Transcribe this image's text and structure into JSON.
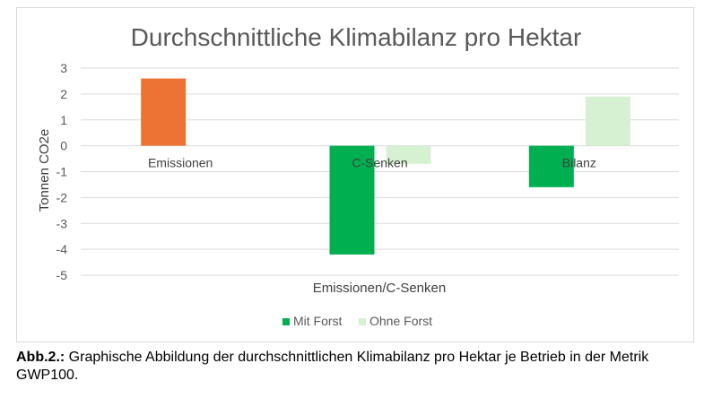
{
  "chart_data": {
    "type": "bar",
    "title": "Durchschnittliche Klimabilanz pro Hektar",
    "xlabel": "Emissionen/C-Senken",
    "ylabel": "Tonnen CO2e",
    "ylim": [
      -5,
      3
    ],
    "yticks": [
      3,
      2,
      1,
      0,
      -1,
      -2,
      -3,
      -4,
      -5
    ],
    "grid": true,
    "legend_position": "bottom",
    "categories": [
      "Emissionen",
      "C-Senken",
      "Bilanz"
    ],
    "series": [
      {
        "name": "Mit Forst",
        "color": "#00b050",
        "values": [
          null,
          -4.2,
          -1.6
        ]
      },
      {
        "name": "Ohne Forst",
        "color": "#d5f1d1",
        "values": [
          null,
          -0.7,
          1.9
        ]
      }
    ],
    "extra_bars": [
      {
        "category": "Emissionen",
        "value": 2.6,
        "color": "#ec7333"
      }
    ]
  },
  "caption": {
    "label": "Abb.2.:",
    "text": " Graphische Abbildung der durchschnittlichen Klimabilanz pro Hektar je Betrieb in der Metrik GWP100."
  }
}
